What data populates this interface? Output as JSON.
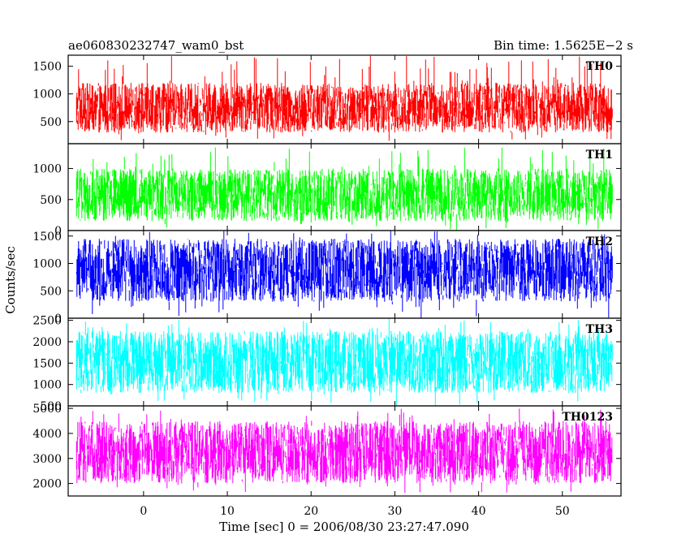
{
  "chart_data": {
    "type": "line",
    "title_left": "ae060830232747_wam0_bst",
    "title_right": "Bin time: 1.5625E−2 s",
    "ylabel": "Counts/sec",
    "xlabel": "Time [sec] 0 = 2006/08/30 23:27:47.090",
    "xlim": [
      -9,
      57
    ],
    "data_xlim": [
      -8,
      56
    ],
    "xticks": [
      0,
      10,
      20,
      30,
      40,
      50
    ],
    "xtick_labels": [
      "0",
      "10",
      "20",
      "30",
      "40",
      "50"
    ],
    "series": [
      {
        "name": "TH0",
        "color": "#ff0000",
        "ylim": [
          100,
          1700
        ],
        "band": [
          300,
          1200
        ],
        "spike": [
          150,
          1700
        ],
        "yticks": [
          500,
          1000,
          1500
        ],
        "ytick_labels": [
          "500",
          "1000",
          "1500"
        ]
      },
      {
        "name": "TH1",
        "color": "#00ff00",
        "ylim": [
          0,
          1400
        ],
        "band": [
          150,
          1000
        ],
        "spike": [
          0,
          1350
        ],
        "yticks": [
          0,
          500,
          1000
        ],
        "ytick_labels": [
          "0",
          "500",
          "1000"
        ]
      },
      {
        "name": "TH2",
        "color": "#0000ff",
        "ylim": [
          0,
          1600
        ],
        "band": [
          300,
          1450
        ],
        "spike": [
          0,
          1600
        ],
        "yticks": [
          0,
          500,
          1000,
          1500
        ],
        "ytick_labels": [
          "0",
          "500",
          "1000",
          "1500"
        ]
      },
      {
        "name": "TH3",
        "color": "#00ffff",
        "ylim": [
          500,
          2550
        ],
        "band": [
          800,
          2250
        ],
        "spike": [
          500,
          2550
        ],
        "yticks": [
          500,
          1000,
          1500,
          2000,
          2500
        ],
        "ytick_labels": [
          "500",
          "1000",
          "1500",
          "2000",
          "2500"
        ]
      },
      {
        "name": "TH0123",
        "color": "#ff00ff",
        "ylim": [
          1500,
          5100
        ],
        "band": [
          2000,
          4500
        ],
        "spike": [
          1600,
          5000
        ],
        "yticks": [
          2000,
          3000,
          4000,
          5000
        ],
        "ytick_labels": [
          "2000",
          "3000",
          "4000",
          "5000"
        ]
      }
    ]
  }
}
